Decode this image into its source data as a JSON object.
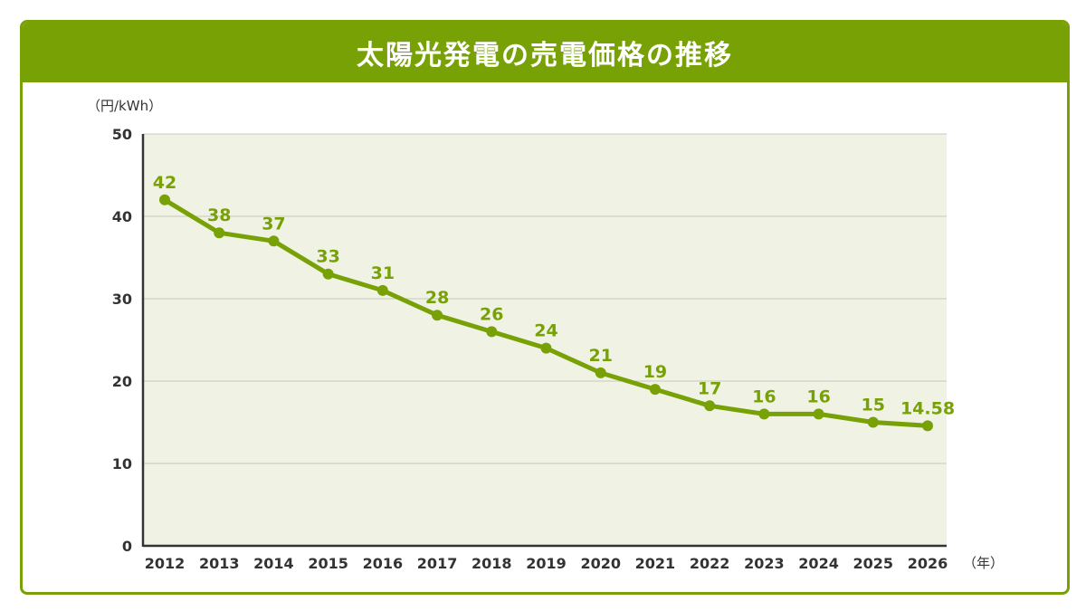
{
  "chart_data": {
    "type": "line",
    "title": "太陽光発電の売電価格の推移",
    "ylabel": "（円/kWh）",
    "xlabel": "（年）",
    "ylim": [
      0,
      50
    ],
    "yticks": [
      0,
      10,
      20,
      30,
      40,
      50
    ],
    "grid": true,
    "categories": [
      "2012",
      "2013",
      "2014",
      "2015",
      "2016",
      "2017",
      "2018",
      "2019",
      "2020",
      "2021",
      "2022",
      "2023",
      "2024",
      "2025",
      "2026"
    ],
    "values": [
      42,
      38,
      37,
      33,
      31,
      28,
      26,
      24,
      21,
      19,
      17,
      16,
      16,
      15,
      14.58
    ],
    "data_labels": [
      "42",
      "38",
      "37",
      "33",
      "31",
      "28",
      "26",
      "24",
      "21",
      "19",
      "17",
      "16",
      "16",
      "15",
      "14.58"
    ],
    "colors": {
      "accent": "#78a106",
      "plot_bg": "#f0f2e4",
      "grid": "#c8c8c0"
    }
  }
}
